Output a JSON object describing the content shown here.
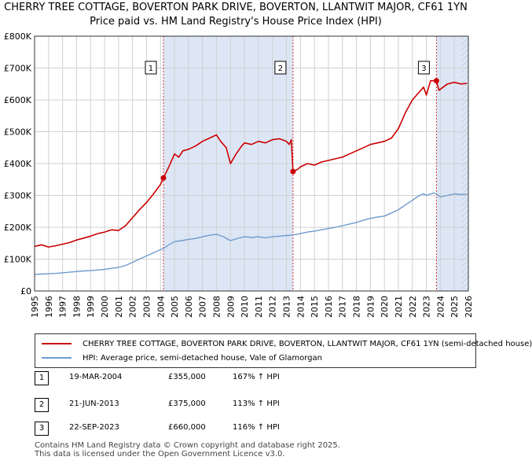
{
  "title_line1": "CHERRY TREE COTTAGE, BOVERTON PARK DRIVE, BOVERTON, LLANTWIT MAJOR, CF61 1YN",
  "title_line2": "Price paid vs. HM Land Registry's House Price Index (HPI)",
  "colors": {
    "property": "#cc0000",
    "hpi": "#6e9ccd",
    "shade": "#dde6f5",
    "grid": "#d0d0d0",
    "marker_line": "#cc0000"
  },
  "chart_data": {
    "type": "line",
    "x_range": [
      1995,
      2026
    ],
    "ylim": [
      0,
      800000
    ],
    "y_ticks": [
      {
        "value": 0,
        "label": "£0"
      },
      {
        "value": 100000,
        "label": "£100K"
      },
      {
        "value": 200000,
        "label": "£200K"
      },
      {
        "value": 300000,
        "label": "£300K"
      },
      {
        "value": 400000,
        "label": "£400K"
      },
      {
        "value": 500000,
        "label": "£500K"
      },
      {
        "value": 600000,
        "label": "£600K"
      },
      {
        "value": 700000,
        "label": "£700K"
      },
      {
        "value": 800000,
        "label": "£800K"
      }
    ],
    "x_ticks": [
      "1995",
      "1996",
      "1997",
      "1998",
      "1999",
      "2000",
      "2001",
      "2002",
      "2003",
      "2004",
      "2005",
      "2006",
      "2007",
      "2008",
      "2009",
      "2010",
      "2011",
      "2012",
      "2013",
      "2014",
      "2015",
      "2016",
      "2017",
      "2018",
      "2019",
      "2020",
      "2021",
      "2022",
      "2023",
      "2024",
      "2025",
      "2026"
    ],
    "shaded_spans": [
      [
        2004.21,
        2013.47
      ],
      [
        2023.72,
        2026
      ]
    ],
    "hatched_span": [
      2025.5,
      2026
    ],
    "series": [
      {
        "name": "CHERRY TREE COTTAGE, BOVERTON PARK DRIVE, BOVERTON, LLANTWIT MAJOR, CF61 1YN (semi-detached house)",
        "color": "#cc0000",
        "points": [
          [
            1995,
            140000
          ],
          [
            1995.5,
            145000
          ],
          [
            1996,
            138000
          ],
          [
            1996.5,
            142000
          ],
          [
            1997,
            147000
          ],
          [
            1997.5,
            152000
          ],
          [
            1998,
            160000
          ],
          [
            1998.5,
            166000
          ],
          [
            1999,
            172000
          ],
          [
            1999.5,
            180000
          ],
          [
            2000,
            185000
          ],
          [
            2000.5,
            192000
          ],
          [
            2001,
            190000
          ],
          [
            2001.5,
            205000
          ],
          [
            2002,
            230000
          ],
          [
            2002.5,
            255000
          ],
          [
            2003,
            278000
          ],
          [
            2003.5,
            305000
          ],
          [
            2004,
            335000
          ],
          [
            2004.21,
            355000
          ],
          [
            2004.6,
            390000
          ],
          [
            2005,
            430000
          ],
          [
            2005.3,
            420000
          ],
          [
            2005.6,
            440000
          ],
          [
            2006,
            445000
          ],
          [
            2006.5,
            455000
          ],
          [
            2007,
            470000
          ],
          [
            2007.5,
            480000
          ],
          [
            2008,
            490000
          ],
          [
            2008.3,
            470000
          ],
          [
            2008.7,
            450000
          ],
          [
            2009,
            400000
          ],
          [
            2009.4,
            430000
          ],
          [
            2009.8,
            455000
          ],
          [
            2010,
            465000
          ],
          [
            2010.5,
            460000
          ],
          [
            2011,
            470000
          ],
          [
            2011.5,
            465000
          ],
          [
            2012,
            475000
          ],
          [
            2012.5,
            478000
          ],
          [
            2013,
            470000
          ],
          [
            2013.2,
            460000
          ],
          [
            2013.35,
            475000
          ],
          [
            2013.47,
            375000
          ],
          [
            2013.8,
            382000
          ],
          [
            2014,
            390000
          ],
          [
            2014.5,
            400000
          ],
          [
            2015,
            395000
          ],
          [
            2015.5,
            405000
          ],
          [
            2016,
            410000
          ],
          [
            2016.5,
            415000
          ],
          [
            2017,
            420000
          ],
          [
            2017.5,
            430000
          ],
          [
            2018,
            440000
          ],
          [
            2018.5,
            450000
          ],
          [
            2019,
            460000
          ],
          [
            2019.5,
            465000
          ],
          [
            2020,
            470000
          ],
          [
            2020.5,
            480000
          ],
          [
            2021,
            510000
          ],
          [
            2021.5,
            560000
          ],
          [
            2022,
            600000
          ],
          [
            2022.5,
            625000
          ],
          [
            2022.8,
            640000
          ],
          [
            2023,
            615000
          ],
          [
            2023.3,
            660000
          ],
          [
            2023.72,
            660000
          ],
          [
            2023.9,
            630000
          ],
          [
            2024.2,
            640000
          ],
          [
            2024.5,
            650000
          ],
          [
            2025,
            655000
          ],
          [
            2025.5,
            650000
          ],
          [
            2025.9,
            652000
          ]
        ]
      },
      {
        "name": "HPI: Average price, semi-detached house, Vale of Glamorgan",
        "color": "#6e9ccd",
        "points": [
          [
            1995,
            52000
          ],
          [
            1995.5,
            53000
          ],
          [
            1996,
            54000
          ],
          [
            1996.5,
            55000
          ],
          [
            1997,
            57000
          ],
          [
            1997.5,
            59000
          ],
          [
            1998,
            61000
          ],
          [
            1998.5,
            63000
          ],
          [
            1999,
            64000
          ],
          [
            1999.5,
            66000
          ],
          [
            2000,
            68000
          ],
          [
            2000.5,
            71000
          ],
          [
            2001,
            74000
          ],
          [
            2001.5,
            80000
          ],
          [
            2002,
            90000
          ],
          [
            2002.5,
            100000
          ],
          [
            2003,
            110000
          ],
          [
            2003.5,
            120000
          ],
          [
            2004,
            130000
          ],
          [
            2004.21,
            133000
          ],
          [
            2004.6,
            145000
          ],
          [
            2005,
            155000
          ],
          [
            2005.5,
            158000
          ],
          [
            2006,
            162000
          ],
          [
            2006.5,
            165000
          ],
          [
            2007,
            170000
          ],
          [
            2007.5,
            175000
          ],
          [
            2008,
            178000
          ],
          [
            2008.5,
            170000
          ],
          [
            2009,
            158000
          ],
          [
            2009.5,
            165000
          ],
          [
            2010,
            170000
          ],
          [
            2010.5,
            168000
          ],
          [
            2011,
            170000
          ],
          [
            2011.5,
            167000
          ],
          [
            2012,
            170000
          ],
          [
            2012.5,
            172000
          ],
          [
            2013,
            174000
          ],
          [
            2013.47,
            176000
          ],
          [
            2014,
            180000
          ],
          [
            2014.5,
            185000
          ],
          [
            2015,
            188000
          ],
          [
            2015.5,
            192000
          ],
          [
            2016,
            196000
          ],
          [
            2016.5,
            200000
          ],
          [
            2017,
            205000
          ],
          [
            2017.5,
            210000
          ],
          [
            2018,
            215000
          ],
          [
            2018.5,
            222000
          ],
          [
            2019,
            228000
          ],
          [
            2019.5,
            232000
          ],
          [
            2020,
            235000
          ],
          [
            2020.5,
            245000
          ],
          [
            2021,
            255000
          ],
          [
            2021.5,
            270000
          ],
          [
            2022,
            285000
          ],
          [
            2022.5,
            300000
          ],
          [
            2022.8,
            305000
          ],
          [
            2023,
            300000
          ],
          [
            2023.5,
            308000
          ],
          [
            2023.72,
            305000
          ],
          [
            2024,
            295000
          ],
          [
            2024.5,
            300000
          ],
          [
            2025,
            305000
          ],
          [
            2025.5,
            303000
          ],
          [
            2025.9,
            304000
          ]
        ]
      }
    ],
    "markers": [
      {
        "label": "1",
        "x": 2004.21,
        "y": 355000
      },
      {
        "label": "2",
        "x": 2013.47,
        "y": 375000
      },
      {
        "label": "3",
        "x": 2023.72,
        "y": 660000
      }
    ]
  },
  "legend": {
    "property_label": "CHERRY TREE COTTAGE, BOVERTON PARK DRIVE, BOVERTON, LLANTWIT MAJOR, CF61 1YN (semi-detached house)",
    "hpi_label": "HPI: Average price, semi-detached house, Vale of Glamorgan"
  },
  "sales": [
    {
      "num": "1",
      "date": "19-MAR-2004",
      "price": "£355,000",
      "hpi": "167% ↑ HPI"
    },
    {
      "num": "2",
      "date": "21-JUN-2013",
      "price": "£375,000",
      "hpi": "113% ↑ HPI"
    },
    {
      "num": "3",
      "date": "22-SEP-2023",
      "price": "£660,000",
      "hpi": "116% ↑ HPI"
    }
  ],
  "footer": {
    "line1": "Contains HM Land Registry data © Crown copyright and database right 2025.",
    "line2": "This data is licensed under the Open Government Licence v3.0."
  }
}
